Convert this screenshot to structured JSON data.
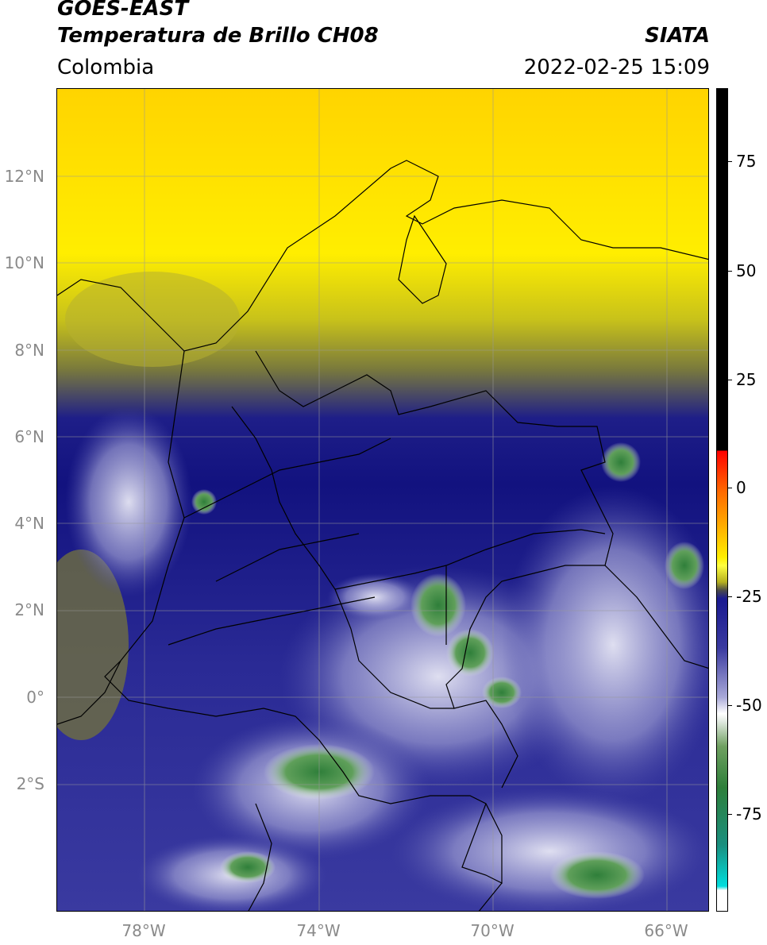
{
  "header": {
    "satellite": "GOES-EAST",
    "product": "Temperatura de Brillo CH08",
    "region": "Colombia",
    "organization": "SIATA",
    "datetime": "2022-02-25 15:09"
  },
  "axes": {
    "lat_labels": [
      "12°N",
      "10°N",
      "8°N",
      "6°N",
      "4°N",
      "2°N",
      "0°",
      "2°S"
    ],
    "lon_labels": [
      "78°W",
      "74°W",
      "70°W",
      "66°W"
    ]
  },
  "colorbar": {
    "ticks": [
      "75",
      "50",
      "25",
      "0",
      "-25",
      "-50",
      "-75"
    ],
    "colors": [
      "#000000",
      "#ff0000",
      "#ffa500",
      "#ffff00",
      "#555555",
      "#000080",
      "#ffffff",
      "#2e8b57",
      "#00cccc"
    ]
  }
}
